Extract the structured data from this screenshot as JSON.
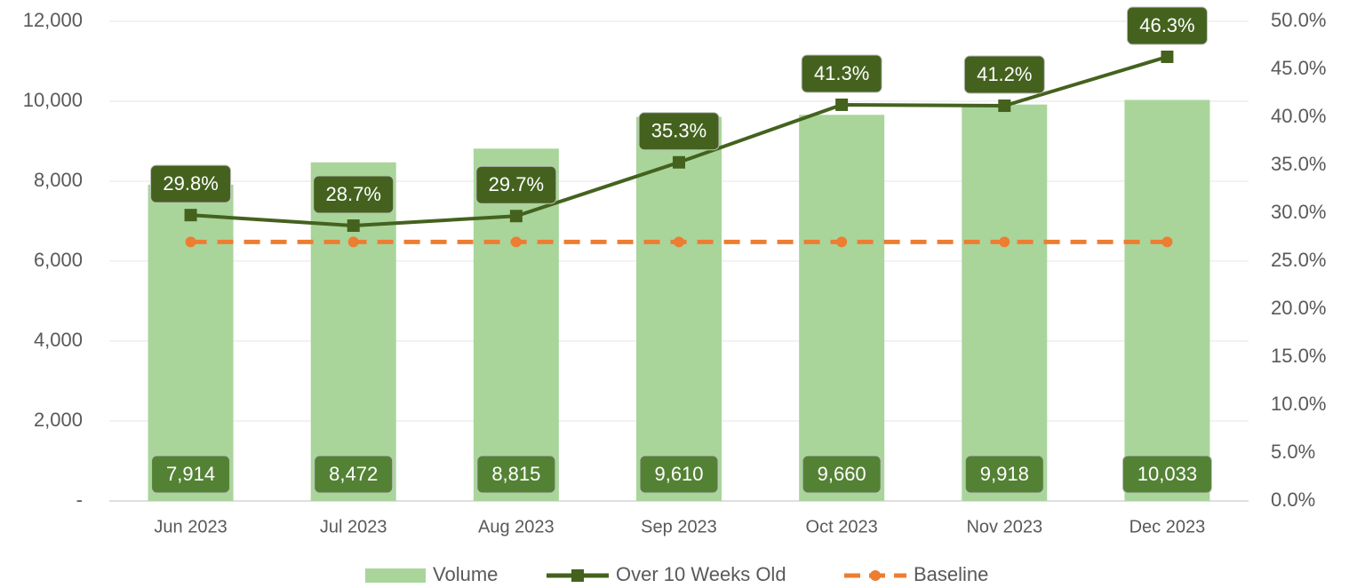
{
  "chart_data": {
    "type": "bar",
    "categories": [
      "Jun 2023",
      "Jul 2023",
      "Aug 2023",
      "Sep 2023",
      "Oct 2023",
      "Nov 2023",
      "Dec 2023"
    ],
    "series": [
      {
        "name": "Volume",
        "type": "bar",
        "color": "#a9d59b",
        "label_color": "#548235",
        "values": [
          7914,
          8472,
          8815,
          9610,
          9660,
          9918,
          10033
        ],
        "value_labels": [
          "7,914",
          "8,472",
          "8,815",
          "9,610",
          "9,660",
          "9,918",
          "10,033"
        ]
      },
      {
        "name": "Over 10 Weeks Old",
        "type": "line",
        "axis": "y2",
        "color": "#44621e",
        "marker": "square",
        "values": [
          29.8,
          28.7,
          29.7,
          35.3,
          41.3,
          41.2,
          46.3
        ],
        "value_labels": [
          "29.8%",
          "28.7%",
          "29.7%",
          "35.3%",
          "41.3%",
          "41.2%",
          "46.3%"
        ]
      },
      {
        "name": "Baseline",
        "type": "line",
        "axis": "y2",
        "color": "#ed7d31",
        "marker": "circle",
        "dashed": true,
        "values": [
          27.0,
          27.0,
          27.0,
          27.0,
          27.0,
          27.0,
          27.0
        ]
      }
    ],
    "ylim": [
      0,
      12000
    ],
    "yticks": [
      {
        "value": 0,
        "label": "-"
      },
      {
        "value": 2000,
        "label": "2,000"
      },
      {
        "value": 4000,
        "label": "4,000"
      },
      {
        "value": 6000,
        "label": "6,000"
      },
      {
        "value": 8000,
        "label": "8,000"
      },
      {
        "value": 10000,
        "label": "10,000"
      },
      {
        "value": 12000,
        "label": "12,000"
      }
    ],
    "y2lim": [
      0,
      50
    ],
    "y2ticks": [
      {
        "value": 0,
        "label": "0.0%"
      },
      {
        "value": 5,
        "label": "5.0%"
      },
      {
        "value": 10,
        "label": "10.0%"
      },
      {
        "value": 15,
        "label": "15.0%"
      },
      {
        "value": 20,
        "label": "20.0%"
      },
      {
        "value": 25,
        "label": "25.0%"
      },
      {
        "value": 30,
        "label": "30.0%"
      },
      {
        "value": 35,
        "label": "35.0%"
      },
      {
        "value": 40,
        "label": "40.0%"
      },
      {
        "value": 45,
        "label": "45.0%"
      },
      {
        "value": 50,
        "label": "50.0%"
      }
    ],
    "grid": true,
    "legend": "bottom"
  }
}
